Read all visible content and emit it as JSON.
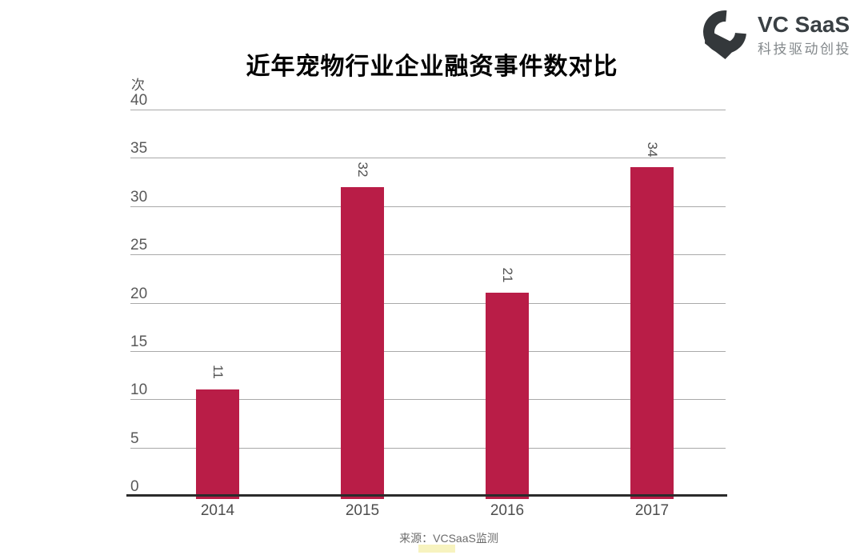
{
  "title": "近年宠物行业企业融资事件数对比",
  "logo": {
    "name": "VC SaaS",
    "tagline": "科技驱动创投",
    "color": "#34383b"
  },
  "footer": {
    "source": "来源：VCSaaS监测"
  },
  "colors": {
    "bar": "#b91d47",
    "gridline": "#a9a9a9",
    "axis": "#2b2b2b",
    "tick_text": "#595959"
  },
  "chart_data": {
    "type": "bar",
    "title": "近年宠物行业企业融资事件数对比",
    "unit_label": "次",
    "xlabel": "",
    "ylabel": "次",
    "categories": [
      "2014",
      "2015",
      "2016",
      "2017"
    ],
    "values": [
      11,
      32,
      21,
      34
    ],
    "ylim": [
      0,
      40
    ],
    "ytick_step": 5,
    "grid": true,
    "legend": "none",
    "bar_color": "#b91d47",
    "data_label_rotation_deg": 90,
    "source_note": "来源：VCSaaS监测"
  }
}
